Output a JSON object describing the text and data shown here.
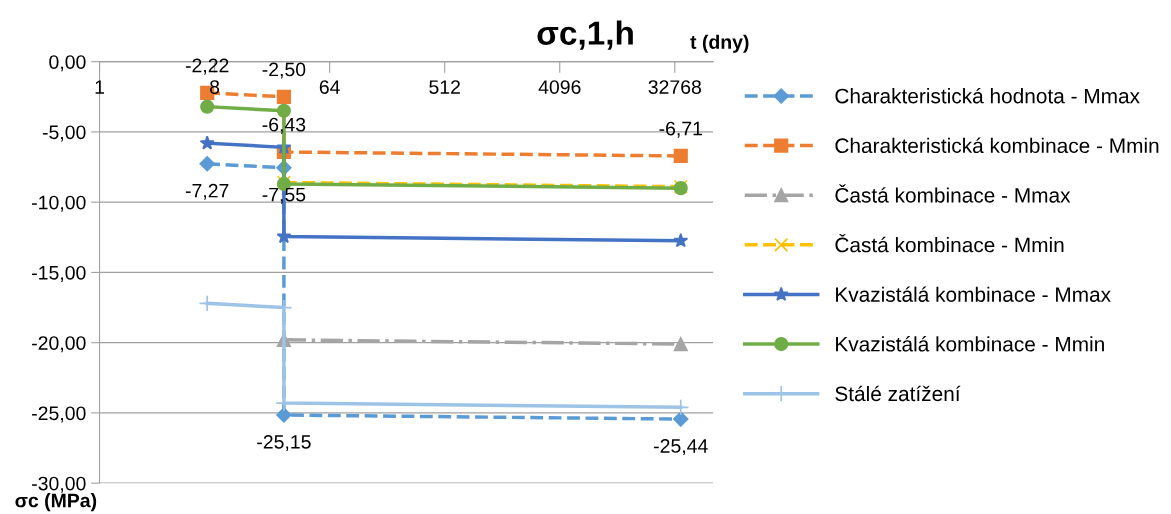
{
  "chart_data": {
    "type": "line",
    "title": "σc,1,h",
    "xlabel": "t (dny)",
    "ylabel": "σc (MPa)",
    "log": "x",
    "xlim": [
      1,
      65536
    ],
    "xticks": [
      1,
      8,
      64,
      512,
      4096,
      32768
    ],
    "ylim": [
      -30,
      0
    ],
    "yticks": [
      {
        "value": 0,
        "label": "0,00"
      },
      {
        "value": -5,
        "label": "-5,00"
      },
      {
        "value": -10,
        "label": "-10,00"
      },
      {
        "value": -15,
        "label": "-15,00"
      },
      {
        "value": -20,
        "label": "-20,00"
      },
      {
        "value": -25,
        "label": "-25,00"
      },
      {
        "value": -30,
        "label": "-30,00"
      }
    ],
    "grid": "y",
    "legend": "right",
    "series": [
      {
        "name": "Charakteristická hodnota - Mmax",
        "color": "#5b9bd5",
        "x": [
          7,
          28,
          28,
          36500
        ],
        "values": [
          -7.27,
          -7.55,
          -25.15,
          -25.44
        ],
        "marker": "diamond",
        "line_style": "dashed",
        "value_labels": [
          "-7,27",
          "-7,55",
          "-25,15",
          "-25,44"
        ]
      },
      {
        "name": "Charakteristická kombinace - Mmin",
        "color": "#ed7d31",
        "x": [
          7,
          28,
          28,
          36500
        ],
        "values": [
          -2.22,
          -2.5,
          -6.43,
          -6.71
        ],
        "marker": "square",
        "line_style": "dashed",
        "value_labels": [
          "-2,22",
          "-2,50",
          "-6,43",
          "-6,71"
        ]
      },
      {
        "name": "Častá kombinace - Mmax",
        "color": "#a5a5a5",
        "x": [
          28,
          36500
        ],
        "values": [
          -19.8,
          -20.1
        ],
        "marker": "triangle",
        "line_style": "dashdot"
      },
      {
        "name": "Častá kombinace - Mmin",
        "color": "#ffc000",
        "x": [
          28,
          36500
        ],
        "values": [
          -8.6,
          -8.9
        ],
        "marker": "cross",
        "line_style": "dashed"
      },
      {
        "name": "Kvazistálá kombinace - Mmax",
        "color": "#4472c4",
        "x": [
          7,
          28,
          28,
          36500
        ],
        "values": [
          -5.8,
          -6.1,
          -12.45,
          -12.75
        ],
        "marker": "star",
        "line_style": "solid"
      },
      {
        "name": "Kvazistálá kombinace - Mmin",
        "color": "#70ad47",
        "x": [
          7,
          28,
          28,
          36500
        ],
        "values": [
          -3.2,
          -3.5,
          -8.7,
          -9.0
        ],
        "marker": "circle",
        "line_style": "solid"
      },
      {
        "name": "Stálé zatížení",
        "color": "#9dc3e6",
        "x": [
          7,
          28,
          28,
          36500
        ],
        "values": [
          -17.2,
          -17.5,
          -24.3,
          -24.6
        ],
        "marker": "plus",
        "line_style": "solid"
      }
    ]
  }
}
